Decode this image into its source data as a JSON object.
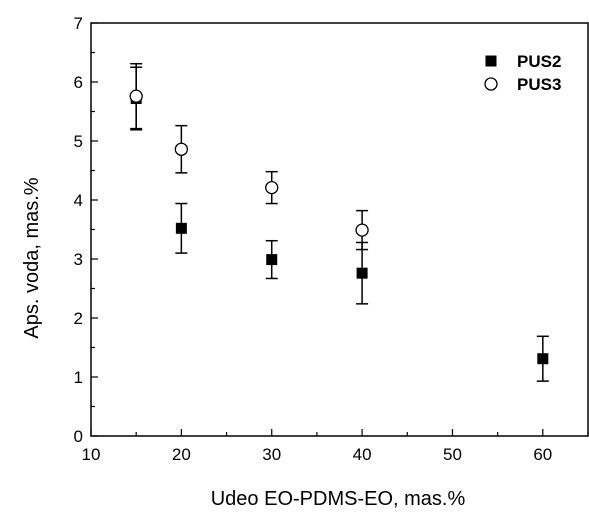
{
  "chart_data": {
    "type": "scatter",
    "xlabel": "Udeo EO-PDMS-EO, mas.%",
    "ylabel": "Aps. voda, mas.%",
    "xlim": [
      10,
      65
    ],
    "ylim": [
      0,
      7
    ],
    "xticks": [
      10,
      20,
      30,
      40,
      50,
      60
    ],
    "yticks": [
      0,
      1,
      2,
      3,
      4,
      5,
      6,
      7
    ],
    "grid": false,
    "legend_position": "top-right",
    "series": [
      {
        "name": "PUS2",
        "marker": "filled-square",
        "color": "#000000",
        "points": [
          {
            "x": 15,
            "y": 5.72,
            "err": 0.53
          },
          {
            "x": 20,
            "y": 3.52,
            "err": 0.42
          },
          {
            "x": 30,
            "y": 2.99,
            "err": 0.32
          },
          {
            "x": 40,
            "y": 2.76,
            "err": 0.52
          },
          {
            "x": 60,
            "y": 1.31,
            "err": 0.38
          }
        ]
      },
      {
        "name": "PUS3",
        "marker": "open-circle",
        "color": "#000000",
        "points": [
          {
            "x": 15,
            "y": 5.76,
            "err": 0.55
          },
          {
            "x": 20,
            "y": 4.86,
            "err": 0.4
          },
          {
            "x": 30,
            "y": 4.21,
            "err": 0.27
          },
          {
            "x": 40,
            "y": 3.49,
            "err": 0.33
          }
        ]
      }
    ]
  }
}
